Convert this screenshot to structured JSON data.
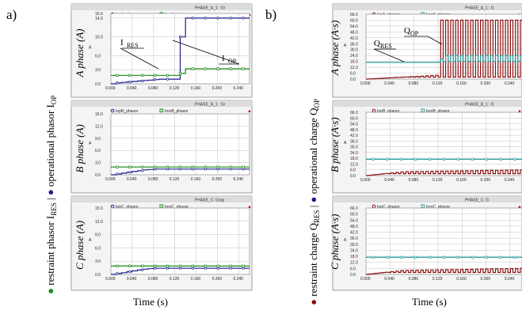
{
  "figure": {
    "panel_a_label": "a)",
    "panel_b_label": "b)",
    "left_y_label": {
      "sym_res": "● restraint phasor I",
      "sub_res": "RES",
      "sep": "  |  ",
      "sym_op": "● operational phasor I",
      "sub_op": "OP"
    },
    "right_y_label": {
      "sym_res": "● restraint charge Q",
      "sub_res": "RES",
      "sep": "  |  ",
      "sym_op": "● operational charge Q",
      "sub_op": "OP"
    },
    "xlabel_left": "Time (s)",
    "xlabel_right": "Time (s)",
    "colors": {
      "op": "#1a1a8c",
      "res": "#1a8a1a",
      "res_charge": "#2aa0a0",
      "op_charge": "#8b1010",
      "grid": "#b0b0b0"
    }
  },
  "chart_data": [
    {
      "type": "line",
      "header": "PHASE_A_1 : Gr",
      "ylabel": "A phase (A)",
      "unit_tick": "A",
      "legend": [
        "IopA_phasor",
        "IresA_phasor"
      ],
      "x_ticks": [
        "0.000",
        "0.040",
        "0.080",
        "0.120",
        "0.160",
        "0.200",
        "0.240"
      ],
      "y_ticks": [
        "0.0",
        "3.0",
        "6.0",
        "10.0",
        "14.0",
        "15.0"
      ],
      "xlim": [
        0,
        0.26
      ],
      "ylim": [
        0,
        15
      ],
      "annotations": [
        {
          "text": "I",
          "sub": "RES"
        },
        {
          "text": "I",
          "sub": "OP"
        }
      ],
      "series": [
        {
          "name": "IopA_phasor",
          "color": "op",
          "x": [
            0,
            0.01,
            0.02,
            0.03,
            0.04,
            0.05,
            0.06,
            0.07,
            0.08,
            0.09,
            0.1,
            0.11,
            0.12,
            0.13,
            0.14,
            0.15,
            0.16,
            0.17,
            0.18,
            0.19,
            0.2,
            0.21,
            0.22,
            0.23,
            0.24,
            0.25,
            0.26
          ],
          "y": [
            0,
            0.2,
            0.3,
            0.4,
            0.5,
            0.6,
            0.7,
            0.8,
            0.9,
            1.0,
            1.0,
            1.0,
            1.0,
            10.0,
            14.0,
            14.0,
            14.0,
            14.0,
            14.0,
            14.0,
            14.0,
            14.0,
            14.0,
            14.0,
            14.0,
            14.0,
            14.0
          ]
        },
        {
          "name": "IresA_phasor",
          "color": "res",
          "x": [
            0,
            0.01,
            0.02,
            0.04,
            0.06,
            0.08,
            0.1,
            0.12,
            0.13,
            0.14,
            0.16,
            0.18,
            0.2,
            0.22,
            0.24,
            0.26
          ],
          "y": [
            1.8,
            1.8,
            1.8,
            1.8,
            1.8,
            1.8,
            1.8,
            1.8,
            2.2,
            3.2,
            3.2,
            3.2,
            3.2,
            3.2,
            3.2,
            3.2
          ]
        }
      ]
    },
    {
      "type": "line",
      "header": "PHASE_B_1 : Gr",
      "ylabel": "B phase (A)",
      "unit_tick": "A",
      "legend": [
        "IopB_phasor",
        "IresB_phasor"
      ],
      "x_ticks": [
        "0.000",
        "0.040",
        "0.080",
        "0.120",
        "0.160",
        "0.200",
        "0.240"
      ],
      "y_ticks": [
        "0.0",
        "3.0",
        "6.0",
        "9.0",
        "12.0",
        "15.0"
      ],
      "xlim": [
        0,
        0.26
      ],
      "ylim": [
        0,
        15
      ],
      "series": [
        {
          "name": "IopB_phasor",
          "color": "op",
          "x": [
            0,
            0.01,
            0.02,
            0.03,
            0.04,
            0.05,
            0.06,
            0.07,
            0.08,
            0.1,
            0.12,
            0.14,
            0.16,
            0.18,
            0.2,
            0.22,
            0.24,
            0.26
          ],
          "y": [
            0,
            0.2,
            0.4,
            0.6,
            0.8,
            1.0,
            1.2,
            1.3,
            1.4,
            1.4,
            1.4,
            1.4,
            1.4,
            1.4,
            1.4,
            1.4,
            1.4,
            1.4
          ]
        },
        {
          "name": "IresB_phasor",
          "color": "res",
          "x": [
            0,
            0.02,
            0.04,
            0.06,
            0.08,
            0.1,
            0.12,
            0.14,
            0.16,
            0.18,
            0.2,
            0.22,
            0.24,
            0.26
          ],
          "y": [
            1.9,
            1.9,
            1.9,
            1.9,
            1.9,
            1.9,
            1.9,
            1.9,
            1.9,
            1.9,
            1.9,
            1.9,
            1.9,
            1.9
          ]
        }
      ]
    },
    {
      "type": "line",
      "header": "PHASE_C: Grap",
      "ylabel": "C phase (A)",
      "unit_tick": "A",
      "legend": [
        "IopC_phasor",
        "IresC_phasor"
      ],
      "x_ticks": [
        "0.000",
        "0.040",
        "0.080",
        "0.120",
        "0.160",
        "0.200",
        "0.240"
      ],
      "y_ticks": [
        "0.0",
        "3.0",
        "6.0",
        "9.0",
        "12.0",
        "15.0"
      ],
      "xlim": [
        0,
        0.26
      ],
      "ylim": [
        0,
        15
      ],
      "series": [
        {
          "name": "IopC_phasor",
          "color": "op",
          "x": [
            0,
            0.01,
            0.02,
            0.03,
            0.04,
            0.05,
            0.06,
            0.07,
            0.08,
            0.1,
            0.12,
            0.14,
            0.16,
            0.18,
            0.2,
            0.22,
            0.24,
            0.26
          ],
          "y": [
            0,
            0.2,
            0.4,
            0.6,
            0.8,
            1.0,
            1.2,
            1.3,
            1.4,
            1.4,
            1.4,
            1.4,
            1.4,
            1.4,
            1.4,
            1.4,
            1.4,
            1.4
          ]
        },
        {
          "name": "IresC_phasor",
          "color": "res",
          "x": [
            0,
            0.02,
            0.04,
            0.06,
            0.08,
            0.1,
            0.12,
            0.14,
            0.16,
            0.18,
            0.2,
            0.22,
            0.24,
            0.26
          ],
          "y": [
            1.9,
            1.9,
            1.9,
            1.9,
            1.9,
            1.9,
            1.9,
            1.9,
            1.9,
            1.9,
            1.9,
            1.9,
            1.9,
            1.9
          ]
        }
      ]
    },
    {
      "type": "line",
      "header": "PHASE_A_1 : G",
      "ylabel": "A phase (A·s)",
      "unit_tick": "A",
      "legend": [
        "IopA_phasor",
        "IresA_phasor"
      ],
      "x_ticks": [
        "0.000",
        "0.040",
        "0.080",
        "0.120",
        "0.160",
        "0.200",
        "0.240"
      ],
      "y_ticks": [
        "0.0",
        "6.0",
        "12.0",
        "18.0",
        "24.0",
        "30.0",
        "36.0",
        "42.0",
        "48.0",
        "54.0",
        "60.0",
        "66.0"
      ],
      "xlim": [
        0,
        0.26
      ],
      "ylim": [
        0,
        66
      ],
      "annotations": [
        {
          "text": "Q",
          "sub": "RES"
        },
        {
          "text": "Q",
          "sub": "OP"
        }
      ],
      "series": [
        {
          "name": "IopA_phasor",
          "color": "op_charge",
          "square_wave": true,
          "x": [
            0,
            0.12,
            0.12,
            0.26
          ],
          "y": [
            0,
            4,
            60,
            60
          ],
          "period": 0.0083,
          "low": 2
        },
        {
          "name": "IresA_phasor",
          "color": "res_charge",
          "square_wave": true,
          "x": [
            0,
            0.12,
            0.13,
            0.26
          ],
          "y": [
            17,
            17,
            24,
            24
          ],
          "period": 0.0083,
          "low": 18
        }
      ]
    },
    {
      "type": "line",
      "header": "PHASE_B_1 : G",
      "ylabel": "B phase (A·s)",
      "unit_tick": "A",
      "legend": [
        "IopB_phasor",
        "IresB_phasor"
      ],
      "x_ticks": [
        "0.000",
        "0.040",
        "0.080",
        "0.120",
        "0.160",
        "0.200",
        "0.240"
      ],
      "y_ticks": [
        "0.0",
        "6.0",
        "12.0",
        "18.0",
        "24.0",
        "30.0",
        "36.0",
        "42.0",
        "48.0",
        "54.0",
        "60.0",
        "66.0"
      ],
      "xlim": [
        0,
        0.26
      ],
      "ylim": [
        0,
        66
      ],
      "series": [
        {
          "name": "IopB_phasor",
          "color": "op_charge",
          "square_wave": true,
          "x": [
            0,
            0.06,
            0.26
          ],
          "y": [
            0,
            4,
            6
          ],
          "period": 0.0083,
          "low": 2
        },
        {
          "name": "IresB_phasor",
          "color": "res_charge",
          "x": [
            0,
            0.26
          ],
          "y": [
            17,
            17
          ]
        }
      ]
    },
    {
      "type": "line",
      "header": "PHASE_C: G",
      "ylabel": "C phase (A·s)",
      "unit_tick": "A",
      "legend": [
        "IopC_phasor",
        "IresC_phasor"
      ],
      "x_ticks": [
        "0.000",
        "0.040",
        "0.080",
        "0.120",
        "0.160",
        "0.200",
        "0.240"
      ],
      "y_ticks": [
        "0.0",
        "6.0",
        "12.0",
        "18.0",
        "24.0",
        "30.0",
        "36.0",
        "42.0",
        "48.0",
        "54.0",
        "60.0",
        "66.0"
      ],
      "xlim": [
        0,
        0.26
      ],
      "ylim": [
        0,
        66
      ],
      "series": [
        {
          "name": "IopC_phasor",
          "color": "op_charge",
          "square_wave": true,
          "x": [
            0,
            0.06,
            0.26
          ],
          "y": [
            0,
            4,
            6
          ],
          "period": 0.0083,
          "low": 2
        },
        {
          "name": "IresC_phasor",
          "color": "res_charge",
          "x": [
            0,
            0.26
          ],
          "y": [
            17,
            17
          ]
        }
      ]
    }
  ]
}
